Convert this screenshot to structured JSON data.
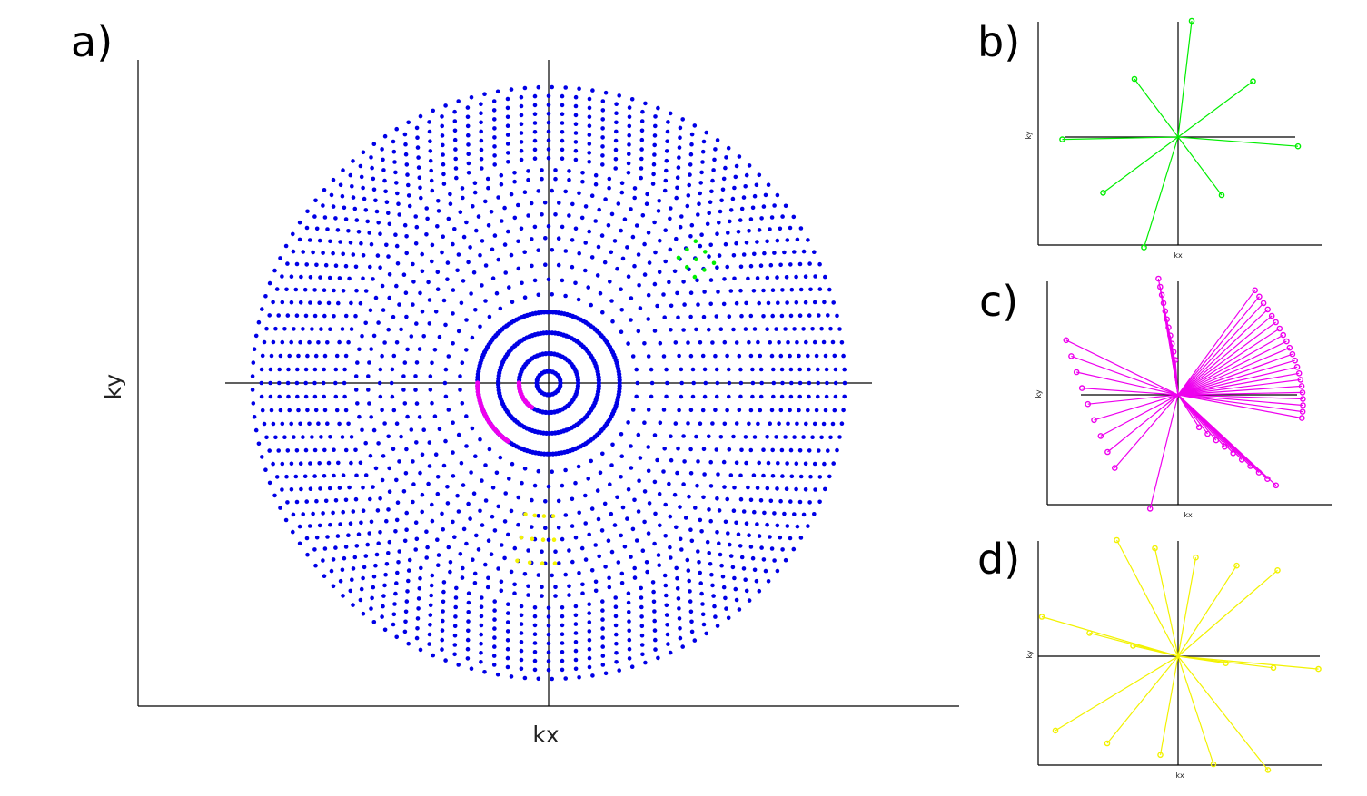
{
  "panels": {
    "a": {
      "letter": "a)",
      "xlabel": "kx",
      "ylabel": "ky"
    },
    "b": {
      "letter": "b)",
      "xlabel": "kx",
      "ylabel": "ky"
    },
    "c": {
      "letter": "c)",
      "xlabel": "kx",
      "ylabel": "ky"
    },
    "d": {
      "letter": "d)",
      "xlabel": "kx",
      "ylabel": "ky"
    }
  },
  "colors": {
    "rings": "#0000e6",
    "green": "#00ee00",
    "magenta": "#ee00ee",
    "yellow": "#f2f200",
    "axes": "#000000"
  },
  "chart_data": [
    {
      "panel": "a",
      "type": "scatter",
      "description_values": {
        "ring_count": 24,
        "ring_radii": [
          0.04,
          0.1,
          0.17,
          0.24,
          0.3,
          0.35,
          0.4,
          0.45,
          0.49,
          0.53,
          0.57,
          0.61,
          0.65,
          0.69,
          0.72,
          0.76,
          0.79,
          0.82,
          0.85,
          0.88,
          0.91,
          0.94,
          0.97,
          1.0
        ],
        "green_points_angles_deg": [
          36,
          40,
          44,
          48
        ],
        "green_points_radii": [
          0.61,
          0.65,
          0.69
        ],
        "magenta_arc_radii": [
          0.1,
          0.24
        ],
        "magenta_arc_angles_deg": [
          180,
          235
        ],
        "yellow_points_angles_deg": [
          260,
          264,
          268,
          272
        ],
        "yellow_points_radii": [
          0.45,
          0.53,
          0.61
        ]
      },
      "xlabel": "kx",
      "ylabel": "ky"
    },
    {
      "panel": "b",
      "type": "line",
      "series_color": "green",
      "spokes": [
        [
          0.1,
          1.0
        ],
        [
          -0.32,
          0.5
        ],
        [
          0.55,
          0.48
        ],
        [
          -0.85,
          -0.02
        ],
        [
          0.88,
          -0.08
        ],
        [
          -0.55,
          -0.48
        ],
        [
          0.32,
          -0.5
        ],
        [
          -0.25,
          -0.95
        ]
      ],
      "xlabel": "kx",
      "ylabel": "ky"
    },
    {
      "panel": "c",
      "type": "line",
      "series_color": "magenta",
      "xlabel": "kx",
      "ylabel": "ky"
    },
    {
      "panel": "d",
      "type": "line",
      "series_color": "yellow",
      "spokes": [
        [
          -0.45,
          1.0
        ],
        [
          -0.17,
          0.93
        ],
        [
          0.13,
          0.85
        ],
        [
          0.43,
          0.78
        ],
        [
          0.73,
          0.74
        ],
        [
          -1.0,
          0.34
        ],
        [
          -0.65,
          0.2
        ],
        [
          -0.33,
          0.09
        ],
        [
          0.35,
          -0.06
        ],
        [
          0.7,
          -0.1
        ],
        [
          1.03,
          -0.11
        ],
        [
          -0.9,
          -0.64
        ],
        [
          -0.52,
          -0.75
        ],
        [
          -0.13,
          -0.85
        ],
        [
          0.26,
          -0.93
        ],
        [
          0.66,
          -0.98
        ]
      ],
      "xlabel": "kx",
      "ylabel": "ky"
    }
  ]
}
